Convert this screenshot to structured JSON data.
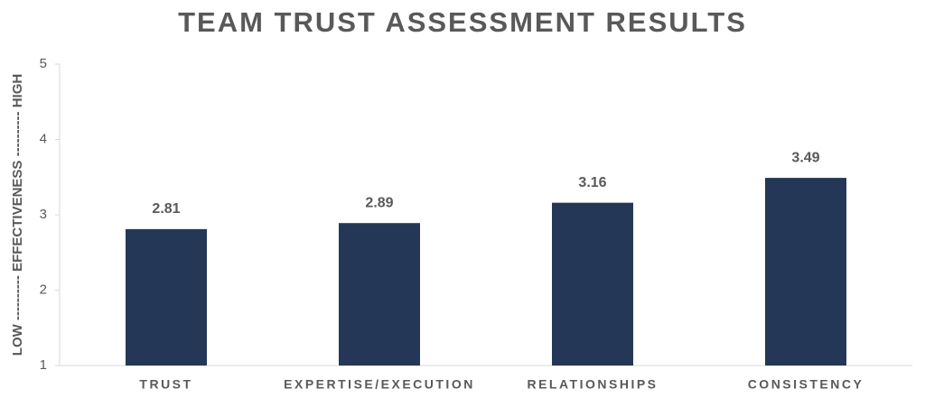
{
  "chart_data": {
    "type": "bar",
    "title": "TEAM TRUST ASSESSMENT RESULTS",
    "y_label": "LOW ---------- EFFECTIVENESS ---------- HIGH",
    "categories": [
      "TRUST",
      "EXPERTISE/EXECUTION",
      "RELATIONSHIPS",
      "CONSISTENCY"
    ],
    "values": [
      2.81,
      2.89,
      3.16,
      3.49
    ],
    "color": "#253757",
    "ylim": [
      1,
      5
    ],
    "yticks": [
      1,
      2,
      3,
      4,
      5
    ],
    "grid": false
  }
}
